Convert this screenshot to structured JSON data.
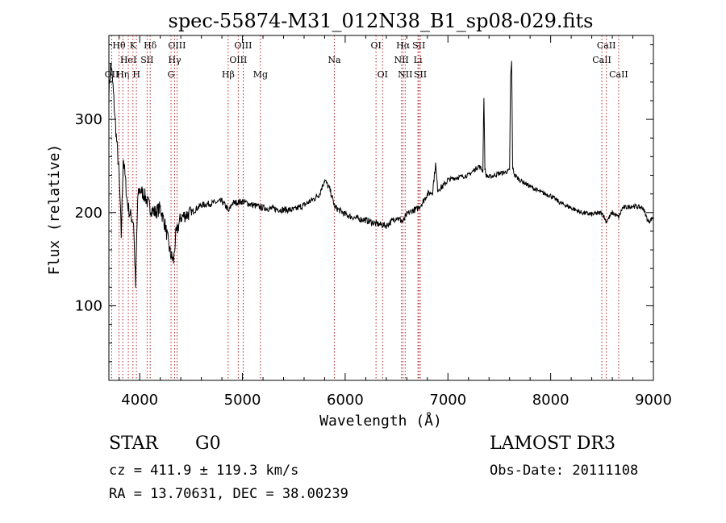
{
  "chart_data": {
    "type": "line",
    "title": "spec-55874-M31_012N38_B1_sp08-029.fits",
    "xlabel": "Wavelength (Å)",
    "ylabel": "Flux (relative)",
    "xlim": [
      3700,
      9000
    ],
    "ylim": [
      20,
      390
    ],
    "x_ticks": [
      4000,
      5000,
      6000,
      7000,
      8000,
      9000
    ],
    "y_ticks": [
      100,
      200,
      300
    ],
    "series": [
      {
        "name": "flux",
        "x": [
          3700,
          3720,
          3740,
          3760,
          3780,
          3800,
          3820,
          3840,
          3860,
          3880,
          3900,
          3920,
          3940,
          3960,
          3980,
          4000,
          4050,
          4100,
          4150,
          4200,
          4250,
          4300,
          4330,
          4350,
          4400,
          4500,
          4600,
          4700,
          4800,
          4850,
          4861,
          4900,
          5000,
          5100,
          5200,
          5300,
          5400,
          5500,
          5600,
          5700,
          5750,
          5800,
          5850,
          5900,
          5950,
          6000,
          6100,
          6200,
          6300,
          6400,
          6500,
          6563,
          6600,
          6650,
          6700,
          6750,
          6800,
          6850,
          6880,
          6900,
          6950,
          7000,
          7100,
          7200,
          7250,
          7300,
          7340,
          7350,
          7360,
          7370,
          7400,
          7450,
          7500,
          7550,
          7600,
          7610,
          7620,
          7630,
          7650,
          7700,
          7800,
          7900,
          8000,
          8100,
          8200,
          8300,
          8400,
          8500,
          8542,
          8600,
          8662,
          8700,
          8800,
          8900,
          8950,
          9000
        ],
        "y": [
          330,
          360,
          335,
          300,
          270,
          240,
          175,
          260,
          235,
          210,
          200,
          195,
          190,
          120,
          215,
          225,
          218,
          205,
          200,
          205,
          185,
          155,
          148,
          175,
          195,
          200,
          208,
          210,
          212,
          205,
          200,
          210,
          212,
          208,
          205,
          204,
          203,
          203,
          208,
          215,
          220,
          235,
          225,
          206,
          202,
          198,
          194,
          192,
          188,
          186,
          195,
          190,
          198,
          202,
          204,
          210,
          220,
          222,
          252,
          225,
          228,
          235,
          238,
          240,
          245,
          250,
          245,
          325,
          248,
          240,
          238,
          240,
          242,
          243,
          245,
          345,
          362,
          248,
          240,
          235,
          228,
          222,
          218,
          210,
          205,
          200,
          198,
          200,
          190,
          200,
          195,
          205,
          207,
          205,
          190,
          195
        ]
      }
    ],
    "lines": [
      {
        "name": "OII",
        "wl": 3727,
        "row": 2
      },
      {
        "name": "Hθ",
        "wl": 3798,
        "row": 0
      },
      {
        "name": "Hη",
        "wl": 3836,
        "row": 2
      },
      {
        "name": "HeI",
        "wl": 3889,
        "row": 1
      },
      {
        "name": "K",
        "wl": 3934,
        "row": 0
      },
      {
        "name": "H",
        "wl": 3968,
        "row": 2
      },
      {
        "name": "SII",
        "wl": 4072,
        "row": 1
      },
      {
        "name": "Hδ",
        "wl": 4102,
        "row": 0
      },
      {
        "name": "Hγ",
        "wl": 4340,
        "row": 1
      },
      {
        "name": "G",
        "wl": 4305,
        "row": 2
      },
      {
        "name": "OIII",
        "wl": 4363,
        "row": 0
      },
      {
        "name": "Hβ",
        "wl": 4861,
        "row": 2
      },
      {
        "name": "OIII",
        "wl": 4959,
        "row": 1
      },
      {
        "name": "OIII",
        "wl": 5007,
        "row": 0
      },
      {
        "name": "Mg",
        "wl": 5175,
        "row": 2
      },
      {
        "name": "Na",
        "wl": 5894,
        "row": 1
      },
      {
        "name": "OI",
        "wl": 6300,
        "row": 0
      },
      {
        "name": "OI",
        "wl": 6364,
        "row": 2
      },
      {
        "name": "NII",
        "wl": 6548,
        "row": 1
      },
      {
        "name": "Hα",
        "wl": 6563,
        "row": 0
      },
      {
        "name": "NII",
        "wl": 6584,
        "row": 2
      },
      {
        "name": "Li",
        "wl": 6708,
        "row": 1
      },
      {
        "name": "SII",
        "wl": 6717,
        "row": 0
      },
      {
        "name": "SII",
        "wl": 6731,
        "row": 2
      },
      {
        "name": "CaII",
        "wl": 8498,
        "row": 1
      },
      {
        "name": "CaII",
        "wl": 8542,
        "row": 0
      },
      {
        "name": "CaII",
        "wl": 8662,
        "row": 2
      }
    ],
    "line_color": "#b22222",
    "spectrum_color": "#000000"
  },
  "info": {
    "class_label": "STAR",
    "subclass": "G0",
    "survey": "LAMOST DR3",
    "cz": "cz = 411.9 ± 119.3 km/s",
    "obs_date": "Obs-Date: 20111108",
    "coords": "RA =  13.70631, DEC =  38.00239"
  }
}
